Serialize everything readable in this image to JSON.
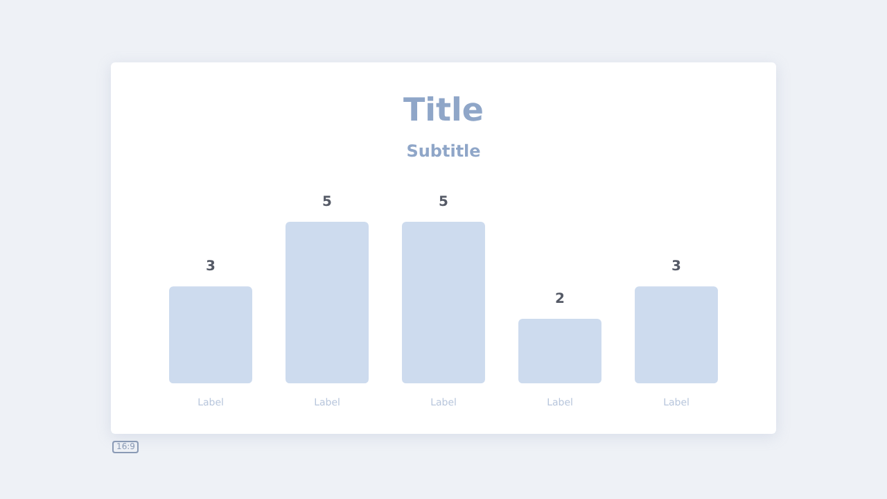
{
  "chart_data": {
    "type": "bar",
    "title": "Title",
    "subtitle": "Subtitle",
    "categories": [
      "Label",
      "Label",
      "Label",
      "Label",
      "Label"
    ],
    "values": [
      3,
      5,
      5,
      2,
      3
    ],
    "color": "#cddbee",
    "data_labels": true,
    "grid": false,
    "legend": false,
    "tick_labels": "x",
    "annotations": [
      "16:9"
    ]
  }
}
